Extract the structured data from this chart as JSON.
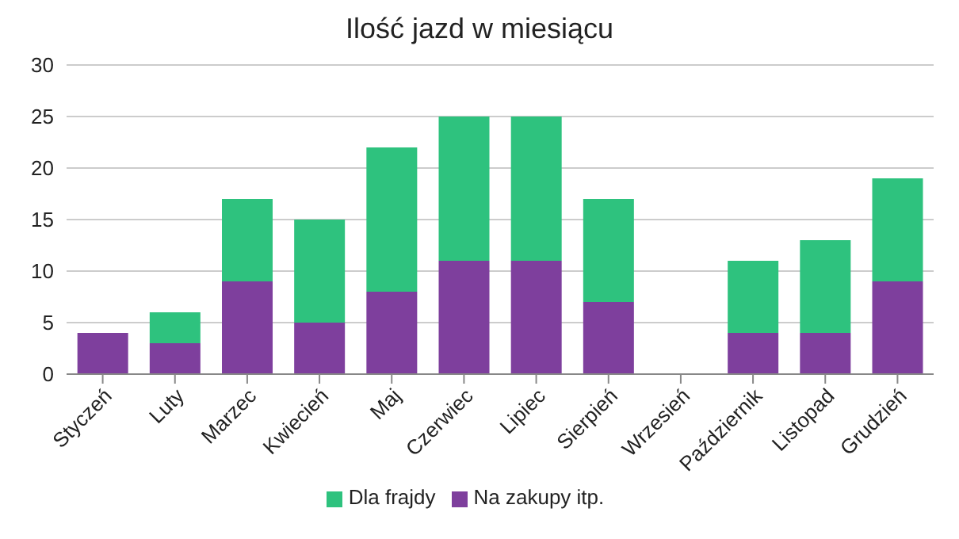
{
  "chart_data": {
    "type": "bar",
    "title": "Ilość jazd w miesiącu",
    "categories": [
      "Styczeń",
      "Luty",
      "Marzec",
      "Kwiecień",
      "Maj",
      "Czerwiec",
      "Lipiec",
      "Sierpień",
      "Wrzesień",
      "Październik",
      "Listopad",
      "Grudzień"
    ],
    "series": [
      {
        "name": "Na zakupy itp.",
        "color": "#7e3f9d",
        "values": [
          4,
          3,
          9,
          5,
          8,
          11,
          11,
          7,
          0,
          4,
          4,
          9
        ]
      },
      {
        "name": "Dla frajdy",
        "color": "#2ec27e",
        "values": [
          0,
          3,
          8,
          10,
          14,
          14,
          14,
          10,
          0,
          7,
          9,
          10
        ]
      }
    ],
    "stacked": true,
    "ylim": [
      0,
      30
    ],
    "yticks": [
      0,
      5,
      10,
      15,
      20,
      25,
      30
    ],
    "grid": "y",
    "legend": "bottom"
  }
}
